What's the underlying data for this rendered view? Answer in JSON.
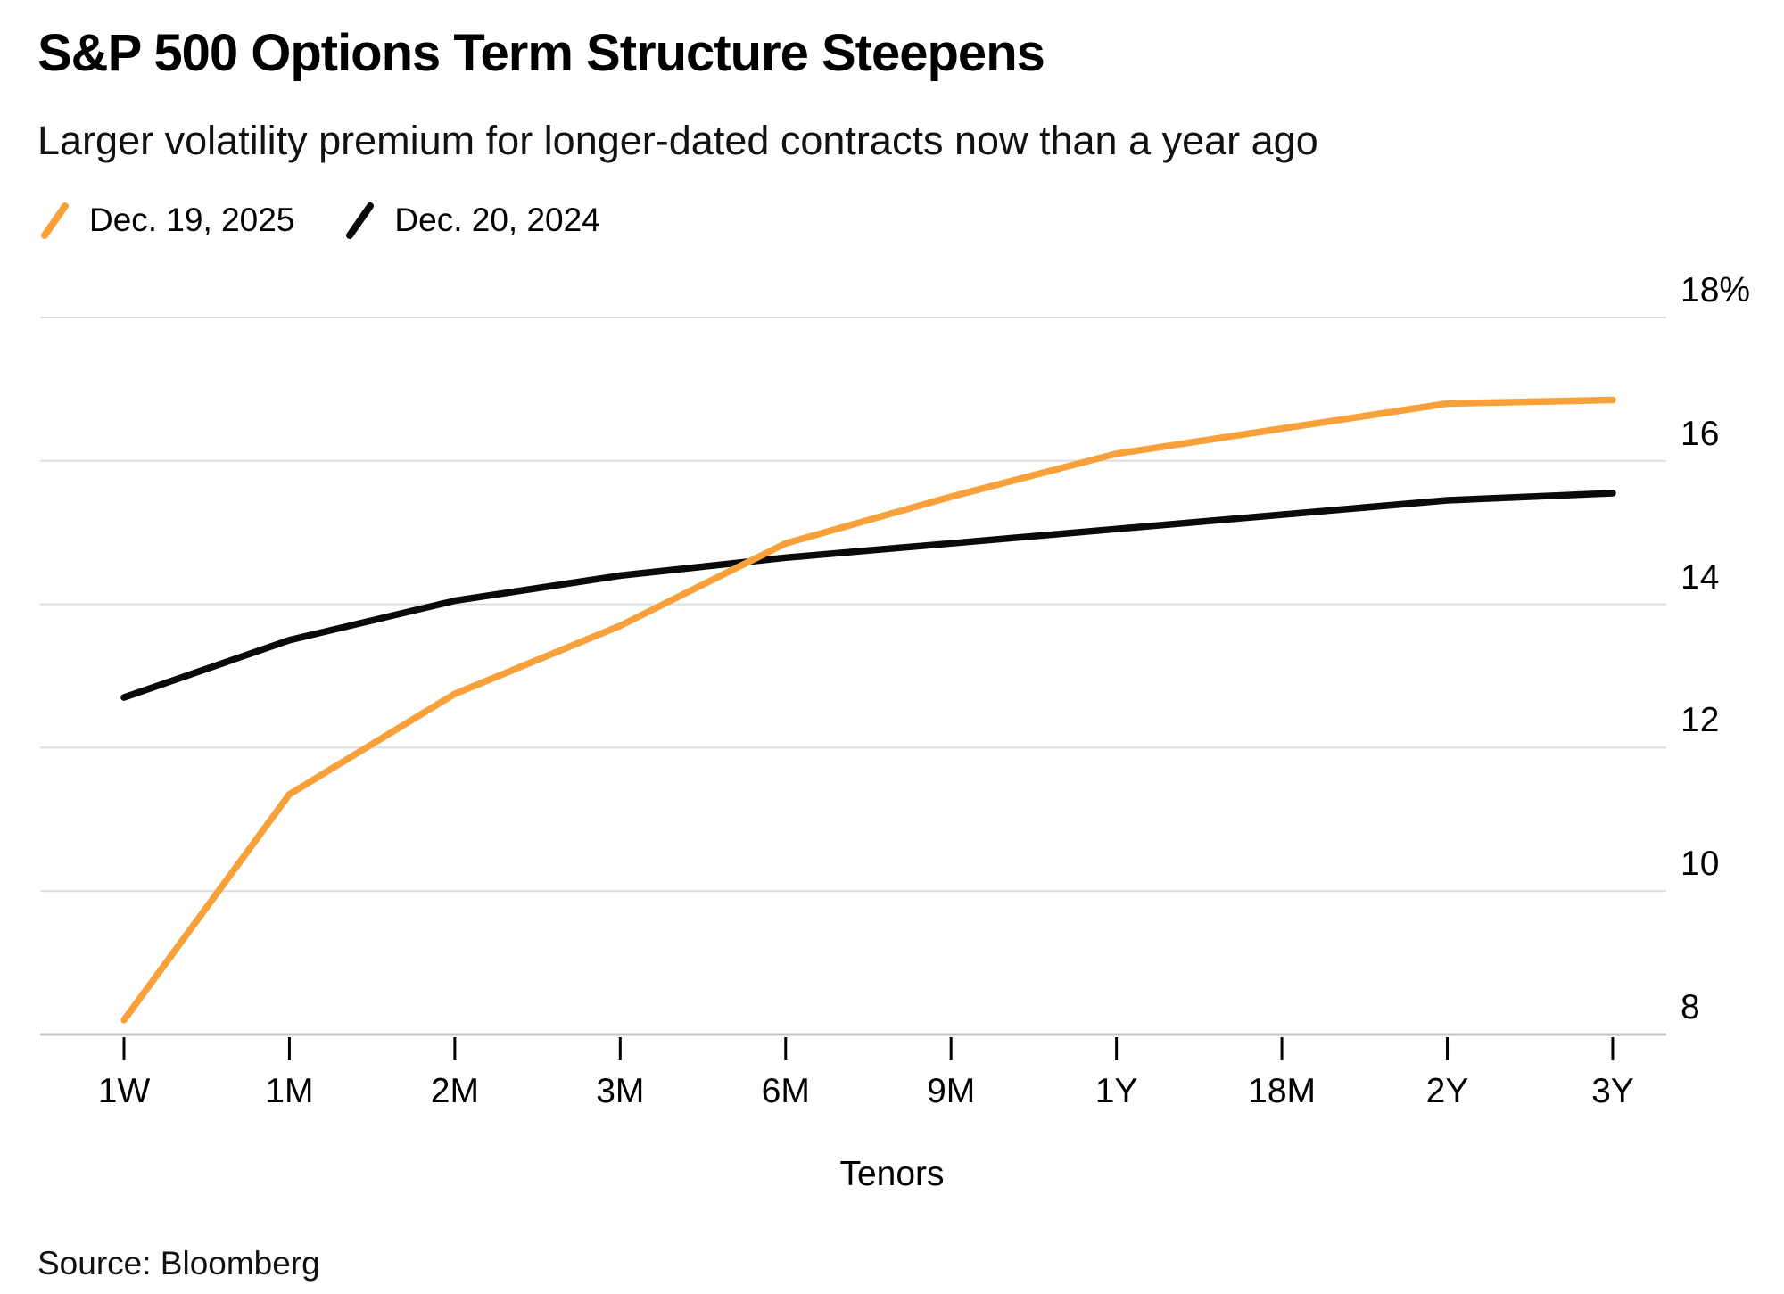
{
  "page": {
    "title": "S&P 500 Options Term Structure Steepens",
    "subtitle": "Larger volatility premium for longer-dated contracts now than a year ago",
    "source": "Source: Bloomberg"
  },
  "legend": {
    "items": [
      {
        "label": "Dec. 19, 2025",
        "marker": "slash-icon",
        "color": "#F8A13B"
      },
      {
        "label": "Dec. 20, 2024",
        "marker": "slash-icon",
        "color": "#0A0A0A"
      }
    ]
  },
  "chart_data": {
    "type": "line",
    "categories": [
      "1W",
      "1M",
      "2M",
      "3M",
      "6M",
      "9M",
      "1Y",
      "18M",
      "2Y",
      "3Y"
    ],
    "series": [
      {
        "name": "Dec. 19, 2025",
        "color": "#F8A13B",
        "values": [
          8.2,
          11.35,
          12.75,
          13.7,
          14.85,
          15.5,
          16.1,
          16.45,
          16.8,
          16.85
        ]
      },
      {
        "name": "Dec. 20, 2024",
        "color": "#0A0A0A",
        "values": [
          12.7,
          13.5,
          14.05,
          14.4,
          14.65,
          14.85,
          15.05,
          15.25,
          15.45,
          15.55
        ]
      }
    ],
    "title": "S&P 500 Options Term Structure Steepens",
    "subtitle": "Larger volatility premium for longer-dated contracts now than a year ago",
    "xlabel": "Tenors",
    "ylabel": "",
    "ylim": [
      8,
      18
    ],
    "yticks": [
      8,
      10,
      12,
      14,
      16,
      18
    ],
    "ytick_labels": [
      "8",
      "10",
      "12",
      "14",
      "16",
      "18%"
    ],
    "grid": true,
    "legend_position": "top-left",
    "colors": {
      "gridline": "#DDDDDD",
      "axis_line": "#C4C4C4",
      "tick": "#000000"
    }
  }
}
